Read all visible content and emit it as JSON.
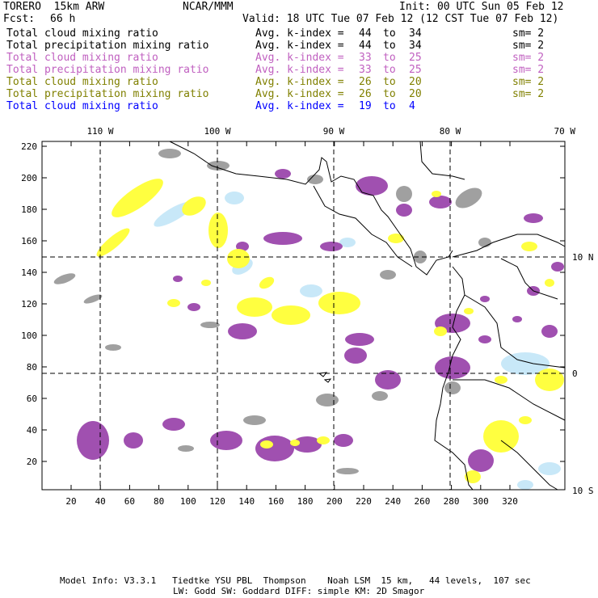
{
  "header": {
    "model": "TORERO  15km ARW",
    "org": "NCAR/MMM",
    "init": "Init: 00 UTC Sun 05 Feb 12",
    "fcst_label": "Fcst:",
    "fcst_value": "66 h",
    "valid": "Valid: 18 UTC Tue 07 Feb 12 (12 CST Tue 07 Feb 12)"
  },
  "legend": [
    {
      "field": "Total cloud mixing ratio",
      "kindex_label": "Avg. k-index =",
      "from": "44",
      "to_word": "to",
      "to": "34",
      "sm": "sm= 2",
      "color": "#000000"
    },
    {
      "field": "Total precipitation mixing ratio",
      "kindex_label": "Avg. k-index =",
      "from": "44",
      "to_word": "to",
      "to": "34",
      "sm": "sm= 2",
      "color": "#000000"
    },
    {
      "field": "Total cloud mixing ratio",
      "kindex_label": "Avg. k-index =",
      "from": "33",
      "to_word": "to",
      "to": "25",
      "sm": "sm= 2",
      "color": "#c060c0"
    },
    {
      "field": "Total precipitation mixing ratio",
      "kindex_label": "Avg. k-index =",
      "from": "33",
      "to_word": "to",
      "to": "25",
      "sm": "sm= 2",
      "color": "#c060c0"
    },
    {
      "field": "Total cloud mixing ratio",
      "kindex_label": "Avg. k-index =",
      "from": "26",
      "to_word": "to",
      "to": "20",
      "sm": "sm= 2",
      "color": "#808000"
    },
    {
      "field": "Total precipitation mixing ratio",
      "kindex_label": "Avg. k-index =",
      "from": "26",
      "to_word": "to",
      "to": "20",
      "sm": "sm= 2",
      "color": "#808000"
    },
    {
      "field": "Total cloud mixing ratio",
      "kindex_label": "Avg. k-index =",
      "from": "19",
      "to_word": "to",
      "to": "4",
      "sm": "",
      "color": "#0000ff"
    }
  ],
  "axes": {
    "top_lon_labels": [
      "110 W",
      "100 W",
      "90 W",
      "80 W",
      "70 W"
    ],
    "right_lat_labels": [
      "10 N",
      "0",
      "10 S"
    ],
    "y_ticks": [
      "220",
      "200",
      "180",
      "160",
      "140",
      "120",
      "100",
      "80",
      "60",
      "40",
      "20"
    ],
    "x_ticks": [
      "20",
      "40",
      "60",
      "80",
      "100",
      "120",
      "140",
      "160",
      "180",
      "200",
      "220",
      "240",
      "260",
      "280",
      "300",
      "320"
    ]
  },
  "colors": {
    "grey_cloud": "#a0a0a0",
    "purple_cloud": "#a050b0",
    "yellow_cloud": "#ffff40",
    "light_blue_cloud": "#c8e8f8",
    "coast": "#000000",
    "grid": "#000000"
  },
  "footer": {
    "line1": "Model Info: V3.3.1   Tiedtke YSU PBL  Thompson    Noah LSM  15 km,   44 levels,  107 sec",
    "line2": "LW: Godd SW: Goddard DIFF: simple KM: 2D Smagor"
  }
}
